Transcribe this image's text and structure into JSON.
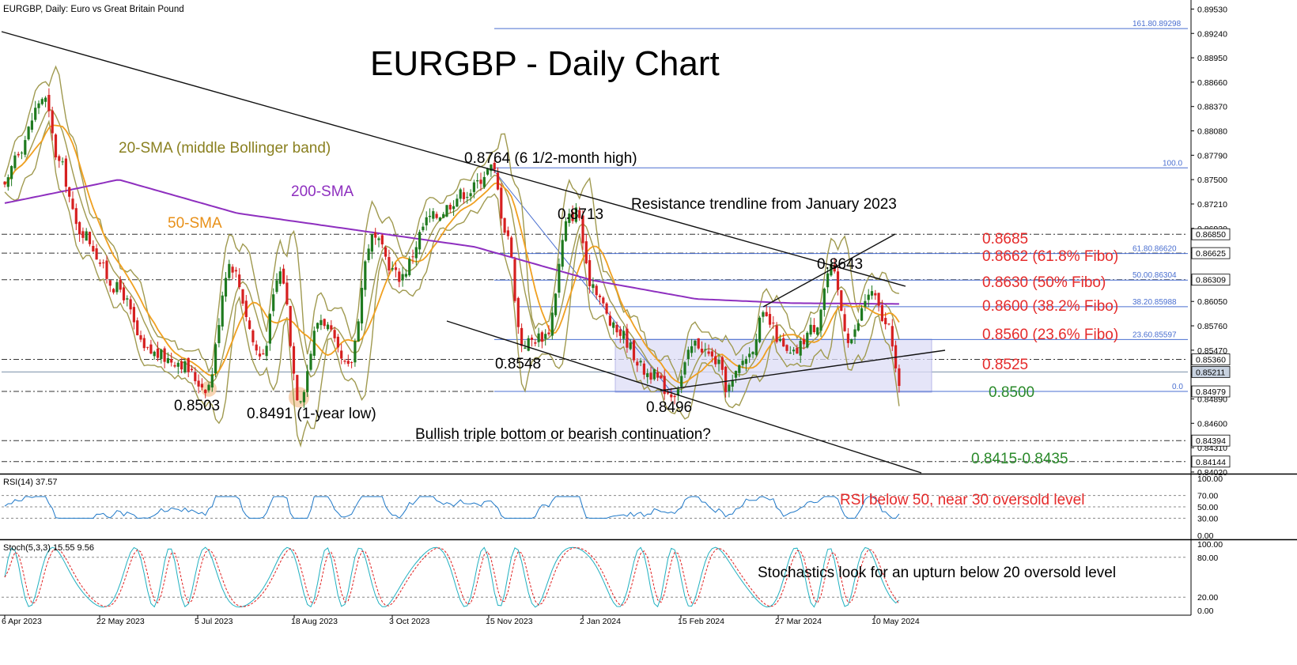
{
  "window": {
    "symbol_title": "EURGBP, Daily:  Euro vs Great Britain Pound"
  },
  "headline": "EURGBP - Daily Chart",
  "colors": {
    "bull_candle": "#1f7a1f",
    "bear_candle": "#d62020",
    "sma200": "#8e2fbf",
    "sma50": "#f0a020",
    "bollinger": "#a09a50",
    "fibo_line": "#4a6fd0",
    "annot_red": "#e52b2b",
    "annot_green": "#2a8a2a",
    "rsi_line": "#1e78c8",
    "stoch_main": "#20b0c0",
    "stoch_signal": "#e02020",
    "range_fill": "#dcdcf6"
  },
  "chart_data": [
    {
      "type": "candlestick",
      "title": "EURGBP - Daily Chart",
      "x_ticks": [
        "6 Apr 2023",
        "22 May 2023",
        "5 Jul 2023",
        "18 Aug 2023",
        "3 Oct 2023",
        "15 Nov 2023",
        "2 Jan 2024",
        "15 Feb 2024",
        "27 Mar 2024",
        "10 May 2024"
      ],
      "y_ticks": [
        "0.89530",
        "0.89240",
        "0.88950",
        "0.88660",
        "0.88370",
        "0.88080",
        "0.87790",
        "0.87500",
        "0.87210",
        "0.86920",
        "0.86630",
        "0.86340",
        "0.86050",
        "0.85760",
        "0.85470",
        "0.85180",
        "0.84890",
        "0.84600",
        "0.84310",
        "0.84020"
      ],
      "ylim": [
        0.8401,
        0.896
      ],
      "price_tags": [
        "0.86850",
        "0.86625",
        "0.86309",
        "0.85360",
        "0.85211",
        "0.84979",
        "0.84394",
        "0.84144"
      ],
      "fibo_labels": [
        "161.80.89298",
        "100.0",
        "61.80.86620",
        "50.00.86304",
        "38.20.85988",
        "23.60.85597",
        "0.0"
      ],
      "series_names": [
        "20-SMA (middle Bollinger band)",
        "50-SMA",
        "200-SMA"
      ],
      "key_points": [
        {
          "label": "0.8503",
          "value": 0.8503
        },
        {
          "label": "0.8491 (1-year low)",
          "value": 0.8491
        },
        {
          "label": "0.8764 (6 1/2-month high)",
          "value": 0.8764
        },
        {
          "label": "0.8713",
          "value": 0.8713
        },
        {
          "label": "0.8548",
          "value": 0.8548
        },
        {
          "label": "0.8496",
          "value": 0.8496
        },
        {
          "label": "0.8643",
          "value": 0.8643
        }
      ],
      "levels": [
        {
          "label": "0.8685",
          "value": 0.8685
        },
        {
          "label": "0.8662 (61.8% Fibo)",
          "value": 0.8662
        },
        {
          "label": "0.8630 (50% Fibo)",
          "value": 0.863
        },
        {
          "label": "0.8600 (38.2% Fibo)",
          "value": 0.86
        },
        {
          "label": "0.8560 (23.6% Fibo)",
          "value": 0.856
        },
        {
          "label": "0.8525",
          "value": 0.8525
        },
        {
          "label": "0.8500",
          "value": 0.85
        },
        {
          "label": "0.8415-0.8435",
          "value_low": 0.8415,
          "value_high": 0.8435
        }
      ],
      "annotations": {
        "trendline": "Resistance trendline from January 2023",
        "question": "Bullish triple bottom or bearish continuation?",
        "sma20": "20-SMA (middle Bollinger band)",
        "sma50": "50-SMA",
        "sma200": "200-SMA"
      }
    },
    {
      "type": "line",
      "title": "RSI(14) 37.57",
      "ylim": [
        0,
        100
      ],
      "y_ticks": [
        "100.00",
        "70.00",
        "50.00",
        "30.00",
        "0.00"
      ],
      "last_value": 37.57,
      "annotation": "RSI below 50, near 30 oversold level"
    },
    {
      "type": "line",
      "title": "Stoch(5,3,3) 15.55 9.56",
      "ylim": [
        0,
        100
      ],
      "y_ticks": [
        "100.00",
        "80.00",
        "20.00",
        "0.00"
      ],
      "last_values": [
        15.55,
        9.56
      ],
      "annotation": "Stochastics look for an upturn below 20 oversold level"
    }
  ]
}
